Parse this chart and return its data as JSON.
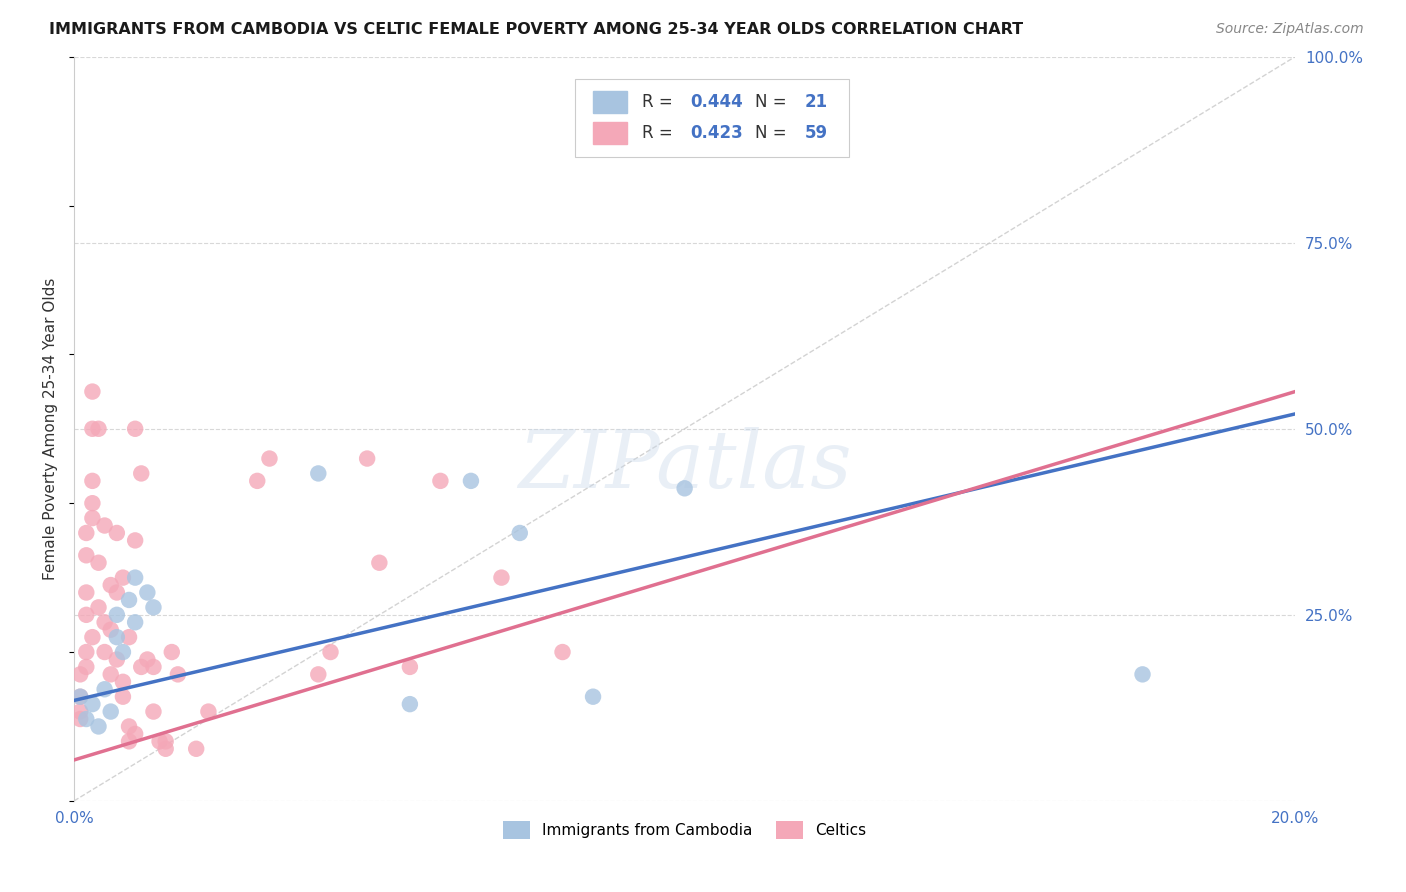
{
  "title": "IMMIGRANTS FROM CAMBODIA VS CELTIC FEMALE POVERTY AMONG 25-34 YEAR OLDS CORRELATION CHART",
  "source": "Source: ZipAtlas.com",
  "ylabel": "Female Poverty Among 25-34 Year Olds",
  "xlim": [
    0.0,
    0.2
  ],
  "ylim": [
    0.0,
    1.0
  ],
  "yticks": [
    0.0,
    0.25,
    0.5,
    0.75,
    1.0
  ],
  "ytick_labels": [
    "",
    "25.0%",
    "50.0%",
    "75.0%",
    "100.0%"
  ],
  "xticks": [
    0.0,
    0.05,
    0.1,
    0.15,
    0.2
  ],
  "xtick_labels": [
    "0.0%",
    "",
    "",
    "",
    "20.0%"
  ],
  "R_cambodia": 0.444,
  "N_cambodia": 21,
  "R_celtics": 0.423,
  "N_celtics": 59,
  "cambodia_color": "#a8c4e0",
  "celtics_color": "#f4a8b8",
  "cambodia_line_color": "#4472c4",
  "celtics_line_color": "#e07090",
  "diagonal_color": "#c8c8c8",
  "background_color": "#ffffff",
  "grid_color": "#d8d8d8",
  "watermark": "ZIPatlas",
  "cambodia_line": [
    0.0,
    0.135,
    0.2,
    0.52
  ],
  "celtics_line": [
    0.0,
    0.055,
    0.2,
    0.55
  ],
  "cambodia_points": [
    [
      0.001,
      0.14
    ],
    [
      0.002,
      0.11
    ],
    [
      0.003,
      0.13
    ],
    [
      0.004,
      0.1
    ],
    [
      0.005,
      0.15
    ],
    [
      0.006,
      0.12
    ],
    [
      0.007,
      0.25
    ],
    [
      0.007,
      0.22
    ],
    [
      0.008,
      0.2
    ],
    [
      0.009,
      0.27
    ],
    [
      0.01,
      0.24
    ],
    [
      0.01,
      0.3
    ],
    [
      0.012,
      0.28
    ],
    [
      0.013,
      0.26
    ],
    [
      0.04,
      0.44
    ],
    [
      0.055,
      0.13
    ],
    [
      0.065,
      0.43
    ],
    [
      0.073,
      0.36
    ],
    [
      0.085,
      0.14
    ],
    [
      0.1,
      0.42
    ],
    [
      0.175,
      0.17
    ]
  ],
  "celtics_points": [
    [
      0.001,
      0.12
    ],
    [
      0.001,
      0.11
    ],
    [
      0.001,
      0.17
    ],
    [
      0.001,
      0.14
    ],
    [
      0.002,
      0.2
    ],
    [
      0.002,
      0.25
    ],
    [
      0.002,
      0.28
    ],
    [
      0.002,
      0.33
    ],
    [
      0.002,
      0.36
    ],
    [
      0.002,
      0.18
    ],
    [
      0.003,
      0.4
    ],
    [
      0.003,
      0.22
    ],
    [
      0.003,
      0.43
    ],
    [
      0.003,
      0.38
    ],
    [
      0.003,
      0.5
    ],
    [
      0.003,
      0.55
    ],
    [
      0.004,
      0.32
    ],
    [
      0.004,
      0.26
    ],
    [
      0.004,
      0.5
    ],
    [
      0.005,
      0.37
    ],
    [
      0.005,
      0.2
    ],
    [
      0.005,
      0.24
    ],
    [
      0.006,
      0.29
    ],
    [
      0.006,
      0.17
    ],
    [
      0.006,
      0.23
    ],
    [
      0.007,
      0.28
    ],
    [
      0.007,
      0.36
    ],
    [
      0.007,
      0.19
    ],
    [
      0.008,
      0.14
    ],
    [
      0.008,
      0.16
    ],
    [
      0.008,
      0.3
    ],
    [
      0.009,
      0.1
    ],
    [
      0.009,
      0.08
    ],
    [
      0.009,
      0.22
    ],
    [
      0.01,
      0.09
    ],
    [
      0.01,
      0.35
    ],
    [
      0.01,
      0.5
    ],
    [
      0.011,
      0.44
    ],
    [
      0.011,
      0.18
    ],
    [
      0.012,
      0.19
    ],
    [
      0.013,
      0.18
    ],
    [
      0.013,
      0.12
    ],
    [
      0.014,
      0.08
    ],
    [
      0.015,
      0.07
    ],
    [
      0.015,
      0.08
    ],
    [
      0.016,
      0.2
    ],
    [
      0.017,
      0.17
    ],
    [
      0.02,
      0.07
    ],
    [
      0.022,
      0.12
    ],
    [
      0.03,
      0.43
    ],
    [
      0.032,
      0.46
    ],
    [
      0.04,
      0.17
    ],
    [
      0.042,
      0.2
    ],
    [
      0.048,
      0.46
    ],
    [
      0.05,
      0.32
    ],
    [
      0.055,
      0.18
    ],
    [
      0.06,
      0.43
    ],
    [
      0.07,
      0.3
    ],
    [
      0.08,
      0.2
    ]
  ]
}
